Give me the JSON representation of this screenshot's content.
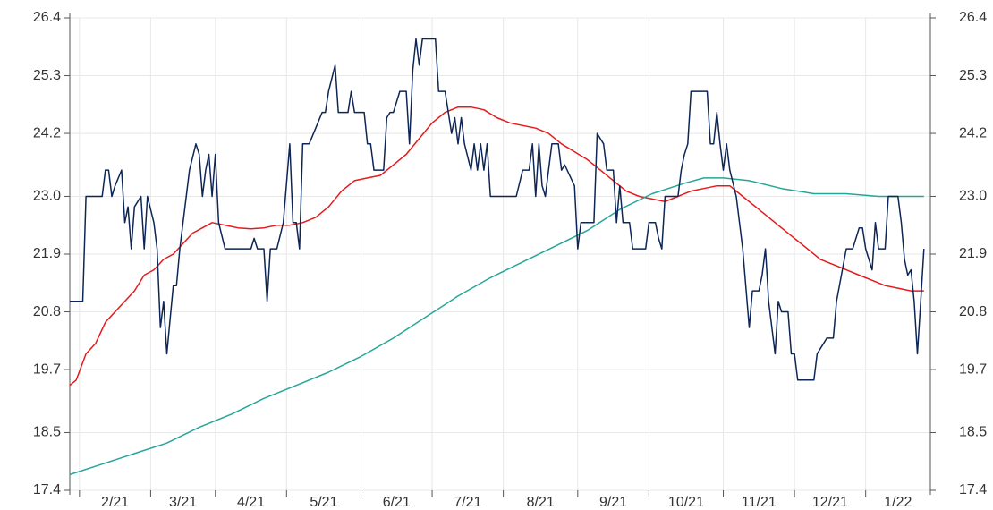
{
  "chart_data": {
    "type": "line",
    "xlim": [
      0,
      266
    ],
    "xticks": [
      {
        "value": 3,
        "label": "2/21"
      },
      {
        "value": 25,
        "label": "3/21"
      },
      {
        "value": 45,
        "label": "4/21"
      },
      {
        "value": 67,
        "label": "5/21"
      },
      {
        "value": 90,
        "label": "6/21"
      },
      {
        "value": 112,
        "label": "7/21"
      },
      {
        "value": 134,
        "label": "8/21"
      },
      {
        "value": 157,
        "label": "9/21"
      },
      {
        "value": 179,
        "label": "10/21"
      },
      {
        "value": 202,
        "label": "11/21"
      },
      {
        "value": 224,
        "label": "12/21"
      },
      {
        "value": 246,
        "label": "1/22"
      }
    ],
    "ylim": [
      17.4,
      26.4
    ],
    "yticks": [
      17.4,
      18.5,
      19.7,
      20.8,
      21.9,
      {
        "value": 23,
        "label": "23.0"
      },
      24.2,
      25.3,
      26.4
    ],
    "grid": true,
    "series": [
      {
        "color": "#e41a1c",
        "x": [
          0,
          2,
          5,
          8,
          11,
          14,
          17,
          20,
          23,
          26,
          29,
          32,
          35,
          38,
          41,
          44,
          48,
          52,
          56,
          60,
          64,
          68,
          72,
          76,
          80,
          84,
          88,
          92,
          96,
          100,
          104,
          108,
          112,
          116,
          120,
          124,
          128,
          132,
          136,
          140,
          144,
          148,
          152,
          156,
          160,
          164,
          168,
          172,
          176,
          180,
          184,
          188,
          192,
          196,
          200,
          204,
          208,
          212,
          216,
          220,
          224,
          228,
          232,
          236,
          240,
          244,
          248,
          252,
          256,
          260,
          264
        ],
        "values": [
          19.4,
          19.5,
          20.0,
          20.2,
          20.6,
          20.8,
          21.0,
          21.2,
          21.5,
          21.6,
          21.8,
          21.9,
          22.1,
          22.3,
          22.4,
          22.5,
          22.45,
          22.4,
          22.38,
          22.4,
          22.45,
          22.45,
          22.5,
          22.6,
          22.8,
          23.1,
          23.3,
          23.35,
          23.4,
          23.6,
          23.8,
          24.1,
          24.4,
          24.6,
          24.7,
          24.7,
          24.65,
          24.5,
          24.4,
          24.35,
          24.3,
          24.2,
          24.0,
          23.85,
          23.7,
          23.5,
          23.3,
          23.1,
          23.0,
          22.95,
          22.9,
          23.0,
          23.1,
          23.15,
          23.2,
          23.2,
          23.0,
          22.8,
          22.6,
          22.4,
          22.2,
          22.0,
          21.8,
          21.7,
          21.6,
          21.5,
          21.4,
          21.3,
          21.25,
          21.2,
          21.2
        ]
      },
      {
        "color": "#26a69a",
        "x": [
          0,
          10,
          20,
          30,
          40,
          50,
          60,
          70,
          80,
          90,
          100,
          110,
          120,
          130,
          140,
          150,
          160,
          170,
          180,
          190,
          196,
          202,
          210,
          220,
          230,
          240,
          250,
          264
        ],
        "values": [
          17.7,
          17.9,
          18.1,
          18.3,
          18.6,
          18.85,
          19.15,
          19.4,
          19.65,
          19.95,
          20.3,
          20.7,
          21.1,
          21.45,
          21.75,
          22.05,
          22.35,
          22.75,
          23.05,
          23.25,
          23.35,
          23.35,
          23.3,
          23.15,
          23.05,
          23.05,
          23.0,
          23.0
        ]
      },
      {
        "color": "#0d2656",
        "x": [
          0,
          4,
          5,
          10,
          11,
          12,
          13,
          14,
          16,
          17,
          18,
          19,
          20,
          22,
          23,
          24,
          26,
          27,
          28,
          29,
          30,
          32,
          33,
          34,
          36,
          37,
          39,
          40,
          41,
          42,
          43,
          44,
          45,
          46,
          48,
          54,
          56,
          57,
          58,
          60,
          61,
          62,
          64,
          66,
          68,
          69,
          70,
          71,
          72,
          74,
          76,
          78,
          79,
          80,
          82,
          83,
          86,
          87,
          88,
          91,
          92,
          93,
          94,
          97,
          98,
          99,
          100,
          102,
          104,
          105,
          106,
          107,
          108,
          109,
          113,
          114,
          116,
          118,
          119,
          120,
          121,
          122,
          124,
          125,
          126,
          127,
          128,
          129,
          130,
          136,
          138,
          140,
          142,
          143,
          144,
          145,
          146,
          147,
          148,
          149,
          151,
          152,
          153,
          156,
          157,
          158,
          162,
          163,
          165,
          166,
          168,
          169,
          170,
          171,
          173,
          174,
          176,
          178,
          179,
          181,
          182,
          183,
          184,
          188,
          189,
          190,
          191,
          192,
          197,
          198,
          199,
          200,
          201,
          202,
          203,
          204,
          206,
          207,
          208,
          210,
          211,
          213,
          214,
          215,
          216,
          218,
          219,
          220,
          222,
          223,
          224,
          225,
          230,
          231,
          233,
          234,
          236,
          237,
          240,
          242,
          244,
          245,
          246,
          248,
          249,
          250,
          252,
          253,
          254,
          256,
          257,
          258,
          259,
          260,
          261,
          262,
          263,
          264
        ],
        "values": [
          21.0,
          21.0,
          23.0,
          23.0,
          23.5,
          23.5,
          23.0,
          23.2,
          23.5,
          22.5,
          22.8,
          22.0,
          22.8,
          23.0,
          22.0,
          23.0,
          22.5,
          22.0,
          20.5,
          21.0,
          20.0,
          21.3,
          21.3,
          22.0,
          23.0,
          23.5,
          24.0,
          23.8,
          23.0,
          23.5,
          23.8,
          23.0,
          23.8,
          22.5,
          22.0,
          22.0,
          22.0,
          22.2,
          22.0,
          22.0,
          21.0,
          22.0,
          22.0,
          22.5,
          24.0,
          22.5,
          22.5,
          22.0,
          24.0,
          24.0,
          24.3,
          24.6,
          24.6,
          25.0,
          25.5,
          24.6,
          24.6,
          25.0,
          24.6,
          24.6,
          24.0,
          24.0,
          23.5,
          23.5,
          24.5,
          24.6,
          24.6,
          25.0,
          25.0,
          24.0,
          25.4,
          26.0,
          25.5,
          26.0,
          26.0,
          25.0,
          25.0,
          24.2,
          24.5,
          24.0,
          24.5,
          24.0,
          23.5,
          24.0,
          23.5,
          24.0,
          23.5,
          24.0,
          23.0,
          23.0,
          23.0,
          23.5,
          23.5,
          24.0,
          23.0,
          24.0,
          23.2,
          23.0,
          23.5,
          24.0,
          24.0,
          23.5,
          23.6,
          23.2,
          22.0,
          22.5,
          22.5,
          24.2,
          24.0,
          23.5,
          23.5,
          22.5,
          23.2,
          22.5,
          22.5,
          22.0,
          22.0,
          22.0,
          22.5,
          22.5,
          22.2,
          22.0,
          23.0,
          23.0,
          23.5,
          23.8,
          24.0,
          25.0,
          25.0,
          24.0,
          24.0,
          24.6,
          24.0,
          23.5,
          24.0,
          23.5,
          23.0,
          22.5,
          22.0,
          20.5,
          21.2,
          21.2,
          21.5,
          22.0,
          21.0,
          20.0,
          21.0,
          20.8,
          20.8,
          20.0,
          20.0,
          19.5,
          19.5,
          20.0,
          20.2,
          20.3,
          20.3,
          21.0,
          22.0,
          22.0,
          22.4,
          22.4,
          22.0,
          21.6,
          22.5,
          22.0,
          22.0,
          23.0,
          23.0,
          23.0,
          22.5,
          21.8,
          21.5,
          21.6,
          21.0,
          20.0,
          21.0,
          22.0
        ]
      }
    ]
  }
}
